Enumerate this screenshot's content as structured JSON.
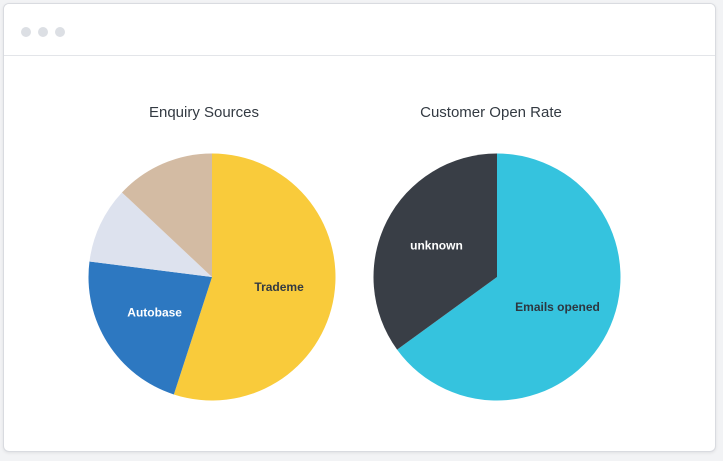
{
  "window": {
    "controls": [
      "dot",
      "dot",
      "dot"
    ]
  },
  "chart_data": [
    {
      "type": "pie",
      "title": "Enquiry Sources",
      "slices": [
        {
          "label": "Trademe",
          "value": 55,
          "color": "#f9cb3b",
          "label_color": "#333a42",
          "show_label": true
        },
        {
          "label": "Autobase",
          "value": 22,
          "color": "#2d78c1",
          "label_color": "#ffffff",
          "show_label": true
        },
        {
          "label": "",
          "value": 10,
          "color": "#dde2ee",
          "label_color": "#333a42",
          "show_label": false
        },
        {
          "label": "",
          "value": 13,
          "color": "#d3bba3",
          "label_color": "#333a42",
          "show_label": false
        }
      ]
    },
    {
      "type": "pie",
      "title": "Customer Open Rate",
      "slices": [
        {
          "label": "Emails opened",
          "value": 65,
          "color": "#35c3de",
          "label_color": "#2d3740",
          "show_label": true
        },
        {
          "label": "unknown",
          "value": 35,
          "color": "#393e46",
          "label_color": "#ffffff",
          "show_label": true
        }
      ]
    }
  ]
}
